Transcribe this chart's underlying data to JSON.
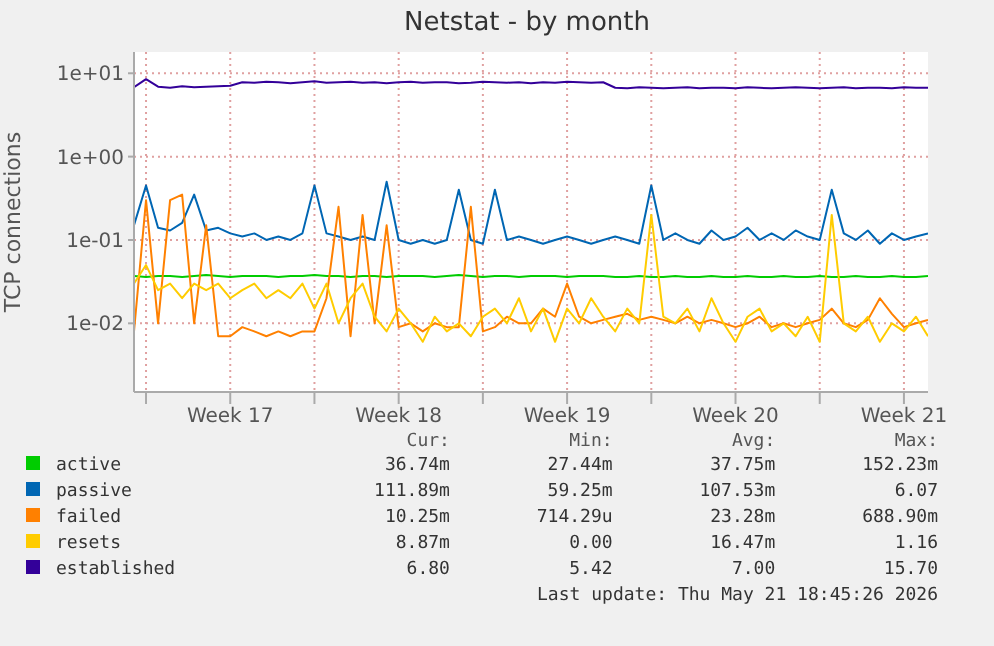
{
  "chart_data": {
    "type": "line",
    "title": "Netstat - by month",
    "ylabel": "TCP connections",
    "log": "y",
    "grid": true,
    "legend": "bottom",
    "marker": "none",
    "x": [
      "2026-04-19T12:00",
      "2026-04-20T00:00",
      "2026-04-20T12:00",
      "2026-04-21T00:00",
      "2026-04-21T12:00",
      "2026-04-22T00:00",
      "2026-04-22T12:00",
      "2026-04-23T00:00",
      "2026-04-23T12:00",
      "2026-04-24T00:00",
      "2026-04-24T12:00",
      "2026-04-25T00:00",
      "2026-04-25T12:00",
      "2026-04-26T00:00",
      "2026-04-26T12:00",
      "2026-04-27T00:00",
      "2026-04-27T12:00",
      "2026-04-28T00:00",
      "2026-04-28T12:00",
      "2026-04-29T00:00",
      "2026-04-29T12:00",
      "2026-04-30T00:00",
      "2026-04-30T12:00",
      "2026-05-01T00:00",
      "2026-05-01T12:00",
      "2026-05-02T00:00",
      "2026-05-02T12:00",
      "2026-05-03T00:00",
      "2026-05-03T12:00",
      "2026-05-04T00:00",
      "2026-05-04T12:00",
      "2026-05-05T00:00",
      "2026-05-05T12:00",
      "2026-05-06T00:00",
      "2026-05-06T12:00",
      "2026-05-07T00:00",
      "2026-05-07T12:00",
      "2026-05-08T00:00",
      "2026-05-08T12:00",
      "2026-05-09T00:00",
      "2026-05-09T12:00",
      "2026-05-10T00:00",
      "2026-05-10T12:00",
      "2026-05-11T00:00",
      "2026-05-11T12:00",
      "2026-05-12T00:00",
      "2026-05-12T12:00",
      "2026-05-13T00:00",
      "2026-05-13T12:00",
      "2026-05-14T00:00",
      "2026-05-14T12:00",
      "2026-05-15T00:00",
      "2026-05-15T12:00",
      "2026-05-16T00:00",
      "2026-05-16T12:00",
      "2026-05-17T00:00",
      "2026-05-17T12:00",
      "2026-05-18T00:00",
      "2026-05-18T12:00",
      "2026-05-19T00:00",
      "2026-05-19T12:00",
      "2026-05-20T00:00",
      "2026-05-20T12:00",
      "2026-05-21T00:00",
      "2026-05-21T12:00",
      "2026-05-22T00:00",
      "2026-05-22T12:00"
    ],
    "xlim": [
      "2026-04-19T12:00",
      "2026-05-22T12:00"
    ],
    "xticks": [
      {
        "value": "2026-04-20T00:00",
        "label": null
      },
      {
        "value": "2026-04-23T12:00",
        "label": "Week 17"
      },
      {
        "value": "2026-04-27T00:00",
        "label": null
      },
      {
        "value": "2026-04-30T12:00",
        "label": "Week 18"
      },
      {
        "value": "2026-05-04T00:00",
        "label": null
      },
      {
        "value": "2026-05-07T12:00",
        "label": "Week 19"
      },
      {
        "value": "2026-05-11T00:00",
        "label": null
      },
      {
        "value": "2026-05-14T12:00",
        "label": "Week 20"
      },
      {
        "value": "2026-05-18T00:00",
        "label": null
      },
      {
        "value": "2026-05-21T12:00",
        "label": "Week 21"
      }
    ],
    "ylim": [
      0.0015,
      18
    ],
    "yticks": [
      {
        "value": 0.01,
        "label": "1e-02"
      },
      {
        "value": 0.1,
        "label": "1e-01"
      },
      {
        "value": 1,
        "label": "1e+00"
      },
      {
        "value": 10,
        "label": "1e+01"
      }
    ],
    "series": [
      {
        "name": "active",
        "color": "#00cc00",
        "values": [
          0.037,
          0.036,
          0.037,
          0.037,
          0.036,
          0.037,
          0.038,
          0.037,
          0.036,
          0.037,
          0.037,
          0.037,
          0.036,
          0.037,
          0.037,
          0.038,
          0.037,
          0.037,
          0.036,
          0.037,
          0.037,
          0.036,
          0.037,
          0.037,
          0.037,
          0.036,
          0.037,
          0.038,
          0.037,
          0.036,
          0.037,
          0.037,
          0.036,
          0.037,
          0.037,
          0.037,
          0.036,
          0.037,
          0.037,
          0.037,
          0.036,
          0.036,
          0.037,
          0.036,
          0.036,
          0.037,
          0.036,
          0.036,
          0.037,
          0.036,
          0.036,
          0.037,
          0.036,
          0.036,
          0.037,
          0.036,
          0.036,
          0.037,
          0.036,
          0.036,
          0.037,
          0.036,
          0.036,
          0.037,
          0.036,
          0.036,
          0.037
        ]
      },
      {
        "name": "passive",
        "color": "#0066b3",
        "values": [
          0.15,
          0.45,
          0.14,
          0.13,
          0.16,
          0.35,
          0.13,
          0.14,
          0.12,
          0.11,
          0.12,
          0.1,
          0.11,
          0.1,
          0.12,
          0.45,
          0.12,
          0.11,
          0.1,
          0.11,
          0.1,
          0.5,
          0.1,
          0.09,
          0.1,
          0.09,
          0.1,
          0.4,
          0.1,
          0.09,
          0.4,
          0.1,
          0.11,
          0.1,
          0.09,
          0.1,
          0.11,
          0.1,
          0.09,
          0.1,
          0.11,
          0.1,
          0.09,
          0.45,
          0.1,
          0.12,
          0.1,
          0.09,
          0.13,
          0.1,
          0.11,
          0.14,
          0.1,
          0.12,
          0.1,
          0.13,
          0.11,
          0.1,
          0.4,
          0.12,
          0.1,
          0.13,
          0.09,
          0.12,
          0.1,
          0.11,
          0.12
        ]
      },
      {
        "name": "failed",
        "color": "#ff8000",
        "values": [
          0.008,
          0.3,
          0.01,
          0.3,
          0.35,
          0.01,
          0.15,
          0.007,
          0.007,
          0.009,
          0.008,
          0.007,
          0.008,
          0.007,
          0.008,
          0.008,
          0.02,
          0.25,
          0.007,
          0.2,
          0.01,
          0.15,
          0.009,
          0.01,
          0.008,
          0.01,
          0.009,
          0.009,
          0.25,
          0.008,
          0.009,
          0.012,
          0.01,
          0.01,
          0.015,
          0.012,
          0.03,
          0.012,
          0.01,
          0.011,
          0.012,
          0.013,
          0.011,
          0.012,
          0.011,
          0.01,
          0.012,
          0.01,
          0.011,
          0.01,
          0.009,
          0.01,
          0.012,
          0.009,
          0.01,
          0.009,
          0.01,
          0.011,
          0.015,
          0.01,
          0.009,
          0.011,
          0.02,
          0.013,
          0.009,
          0.01,
          0.011
        ]
      },
      {
        "name": "resets",
        "color": "#ffcc00",
        "values": [
          0.03,
          0.05,
          0.025,
          0.03,
          0.02,
          0.03,
          0.025,
          0.03,
          0.02,
          0.025,
          0.03,
          0.02,
          0.025,
          0.02,
          0.03,
          0.015,
          0.03,
          0.01,
          0.02,
          0.03,
          0.012,
          0.008,
          0.015,
          0.01,
          0.006,
          0.012,
          0.008,
          0.01,
          0.007,
          0.012,
          0.015,
          0.01,
          0.02,
          0.008,
          0.015,
          0.006,
          0.015,
          0.01,
          0.02,
          0.012,
          0.008,
          0.015,
          0.01,
          0.2,
          0.012,
          0.01,
          0.015,
          0.008,
          0.02,
          0.01,
          0.006,
          0.012,
          0.015,
          0.008,
          0.01,
          0.007,
          0.012,
          0.006,
          0.2,
          0.01,
          0.008,
          0.012,
          0.006,
          0.01,
          0.008,
          0.012,
          0.007
        ]
      },
      {
        "name": "established",
        "color": "#330099",
        "values": [
          6.8,
          8.5,
          6.9,
          6.7,
          7,
          6.8,
          6.9,
          7,
          7.1,
          7.8,
          7.7,
          7.9,
          7.8,
          7.6,
          7.8,
          8,
          7.7,
          7.8,
          7.9,
          7.7,
          7.8,
          7.6,
          7.8,
          7.9,
          7.7,
          7.8,
          7.8,
          7.6,
          7.7,
          7.9,
          7.8,
          7.7,
          7.8,
          7.6,
          7.8,
          7.7,
          7.9,
          7.8,
          7.7,
          7.8,
          6.7,
          6.6,
          6.8,
          6.7,
          6.6,
          6.7,
          6.8,
          6.6,
          6.7,
          6.7,
          6.6,
          6.8,
          6.7,
          6.6,
          6.7,
          6.8,
          6.7,
          6.6,
          6.7,
          6.8,
          6.6,
          6.7,
          6.7,
          6.6,
          6.8,
          6.7,
          6.7
        ]
      }
    ],
    "annotations": [
      "Cur:",
      "Min:",
      "Avg:",
      "Max:",
      "36.74m",
      "27.44m",
      "37.75m",
      "152.23m",
      "111.89m",
      "59.25m",
      "107.53m",
      "6.07",
      "10.25m",
      "714.29u",
      "23.28m",
      "688.90m",
      "8.87m",
      "0.00",
      "16.47m",
      "1.16",
      "6.80",
      "5.42",
      "7.00",
      "15.70",
      "Last update: Thu May 21 18:45:26 2026"
    ]
  }
}
